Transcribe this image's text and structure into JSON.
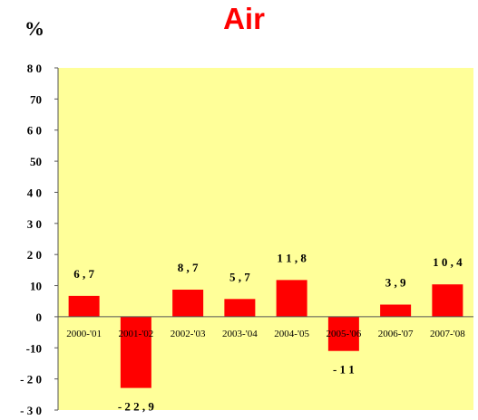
{
  "chart_data": {
    "type": "bar",
    "title": "Air",
    "ylabel": "%",
    "xlabel": "",
    "categories": [
      "2000-'01",
      "2001-'02",
      "2002-'03",
      "2003-'04",
      "2004-'05",
      "2005-'06",
      "2006-'07",
      "2007-'08"
    ],
    "values": [
      6.7,
      -22.9,
      8.7,
      5.7,
      11.8,
      -11,
      3.9,
      10.4
    ],
    "data_labels": [
      "6 , 7",
      "- 2 2 , 9",
      "8 , 7",
      "5 , 7",
      "1 1 , 8",
      "- 1 1",
      "3 , 9",
      "1 0 , 4"
    ],
    "ylim": [
      -30,
      80
    ],
    "yticks": [
      -30,
      -20,
      -10,
      0,
      10,
      20,
      30,
      40,
      50,
      60,
      70,
      80
    ],
    "ytick_labels": [
      "- 3 0",
      "- 2 0",
      "-10",
      "0",
      "10",
      "2 0",
      "3 0",
      "4 0",
      "50",
      "6 0",
      "70",
      "8 0"
    ],
    "grid": false,
    "legend": "none",
    "colors": {
      "bar": "#ff0000",
      "plot_bg": "#ffff99",
      "title": "#ff0000"
    }
  }
}
